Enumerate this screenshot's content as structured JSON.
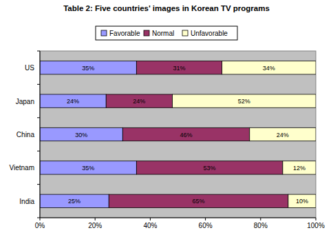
{
  "chart_data": {
    "type": "bar",
    "title": "Table 2: Five countries' images in Korean TV programs",
    "orientation": "horizontal",
    "stacked": true,
    "data_labels": true,
    "legend": "top",
    "grid": false,
    "categories": [
      "US",
      "Japan",
      "China",
      "Vietnam",
      "India"
    ],
    "series": [
      {
        "name": "Favorable",
        "color": "#9999ff",
        "values": [
          35,
          24,
          30,
          35,
          25
        ],
        "value_labels": [
          "35%",
          "24%",
          "30%",
          "35%",
          "25%"
        ]
      },
      {
        "name": "Normal",
        "color": "#993366",
        "values": [
          31,
          24,
          46,
          53,
          65
        ],
        "value_labels": [
          "31%",
          "24%",
          "46%",
          "53%",
          "65%"
        ]
      },
      {
        "name": "Unfavorable",
        "color": "#ffffcc",
        "values": [
          34,
          52,
          24,
          12,
          10
        ],
        "value_labels": [
          "34%",
          "52%",
          "24%",
          "12%",
          "10%"
        ]
      }
    ],
    "xlim": [
      0,
      100
    ],
    "xticks": [
      {
        "value": 0,
        "label": "0%"
      },
      {
        "value": 20,
        "label": "20%"
      },
      {
        "value": 40,
        "label": "40%"
      },
      {
        "value": 60,
        "label": "60%"
      },
      {
        "value": 80,
        "label": "80%"
      },
      {
        "value": 100,
        "label": "100%"
      }
    ]
  }
}
